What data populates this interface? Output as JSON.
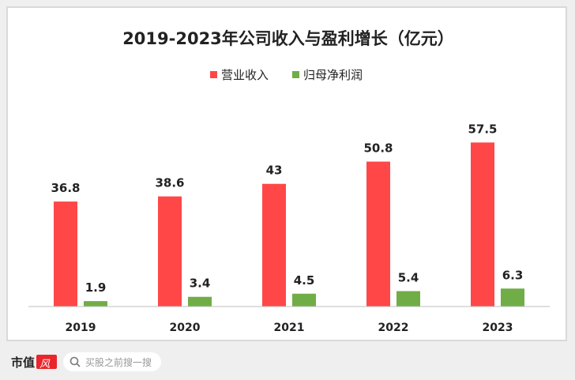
{
  "chart_data": {
    "type": "bar",
    "title": "2019-2023年公司收入与盈利增长（亿元）",
    "categories": [
      "2019",
      "2020",
      "2021",
      "2022",
      "2023"
    ],
    "series": [
      {
        "name": "营业收入",
        "color": "#ff4747",
        "values": [
          36.8,
          38.6,
          43,
          50.8,
          57.5
        ]
      },
      {
        "name": "归母净利润",
        "color": "#70ad47",
        "values": [
          1.9,
          3.4,
          4.5,
          5.4,
          6.3
        ]
      }
    ],
    "ylim": [
      0,
      72
    ],
    "grid": false,
    "legend": "top",
    "data_labels": true
  },
  "footer": {
    "brand": "市值",
    "logo": "风云",
    "search_placeholder": "买股之前搜一搜"
  }
}
